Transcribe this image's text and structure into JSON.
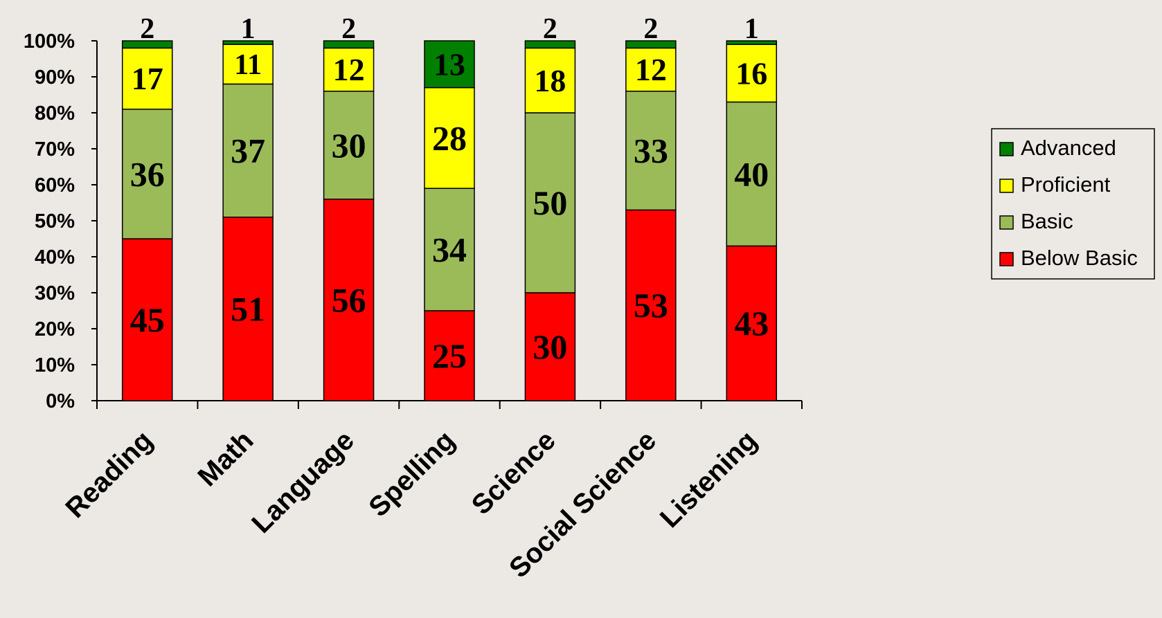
{
  "chart_data": {
    "type": "bar",
    "stacked": true,
    "normalized": true,
    "categories": [
      "Reading",
      "Math",
      "Language",
      "Spelling",
      "Science",
      "Social Science",
      "Listening"
    ],
    "series": [
      {
        "name": "Below Basic",
        "color": "#ff0000",
        "values": [
          45,
          51,
          56,
          25,
          30,
          53,
          43
        ]
      },
      {
        "name": "Basic",
        "color": "#9bbb59",
        "values": [
          36,
          37,
          30,
          34,
          50,
          33,
          40
        ]
      },
      {
        "name": "Proficient",
        "color": "#ffff00",
        "values": [
          17,
          11,
          12,
          28,
          18,
          12,
          16
        ]
      },
      {
        "name": "Advanced",
        "color": "#008000",
        "values": [
          2,
          1,
          2,
          13,
          2,
          2,
          1
        ]
      }
    ],
    "y_ticks": [
      "0%",
      "10%",
      "20%",
      "30%",
      "40%",
      "50%",
      "60%",
      "70%",
      "80%",
      "90%",
      "100%"
    ],
    "ylim": [
      0,
      100
    ],
    "grid": false,
    "legend_position": "right",
    "legend_order": [
      "Advanced",
      "Proficient",
      "Basic",
      "Below Basic"
    ]
  }
}
